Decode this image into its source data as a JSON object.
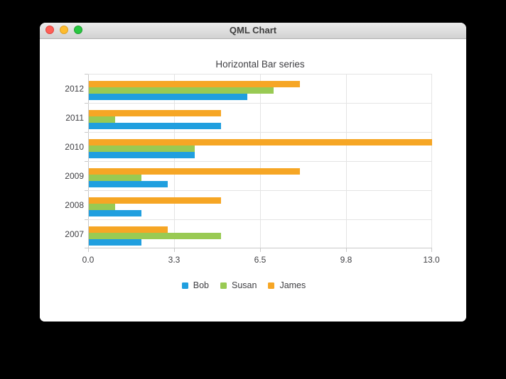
{
  "window": {
    "title": "QML Chart",
    "controls": {
      "close": "close",
      "minimize": "minimize",
      "zoom": "zoom"
    }
  },
  "chart_data": {
    "type": "bar",
    "orientation": "horizontal",
    "title": "Horizontal Bar series",
    "categories": [
      "2007",
      "2008",
      "2009",
      "2010",
      "2011",
      "2012"
    ],
    "series": [
      {
        "name": "Bob",
        "color": "#209fdf",
        "values": [
          2,
          2,
          3,
          4,
          5,
          6
        ]
      },
      {
        "name": "Susan",
        "color": "#99ca53",
        "values": [
          5,
          1,
          2,
          4,
          1,
          7
        ]
      },
      {
        "name": "James",
        "color": "#f6a625",
        "values": [
          3,
          5,
          8,
          13,
          5,
          8
        ]
      }
    ],
    "x_axis": {
      "min": 0,
      "max": 13,
      "tick_labels": [
        "0.0",
        "3.3",
        "6.5",
        "9.8",
        "13.0"
      ]
    },
    "legend": {
      "position": "bottom",
      "entries": [
        "Bob",
        "Susan",
        "James"
      ]
    },
    "grid": true,
    "text_color": "#404044",
    "grid_color": "#e4e4e4",
    "axis_color": "#c9c9c9"
  }
}
